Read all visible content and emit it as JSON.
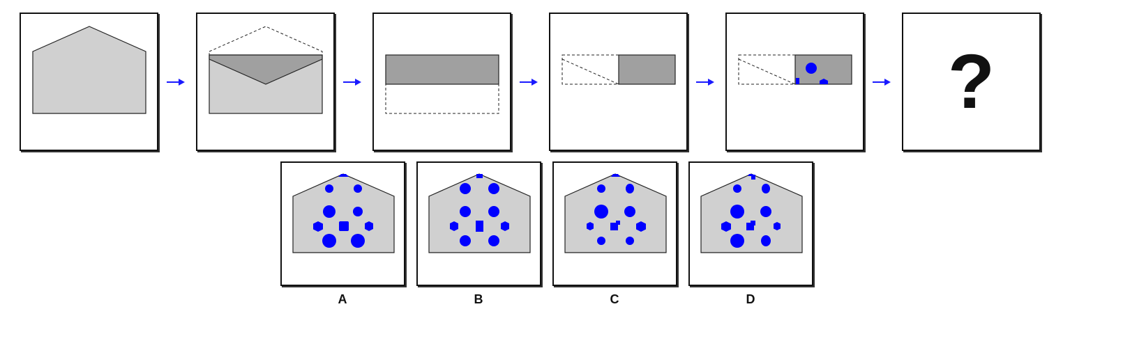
{
  "question_mark": "?",
  "options": [
    {
      "label": "A",
      "fill": "#0000ff"
    },
    {
      "label": "B",
      "fill": "#0000ff"
    },
    {
      "label": "C",
      "fill": "#0000ff"
    },
    {
      "label": "D",
      "fill": "#0000ff"
    }
  ],
  "colors": {
    "envelope_light": "#d0d0d0",
    "envelope_dark": "#a0a0a0",
    "shape_blue": "#0000ff",
    "arrow_blue": "#1a1aff",
    "outline": "#222222"
  }
}
